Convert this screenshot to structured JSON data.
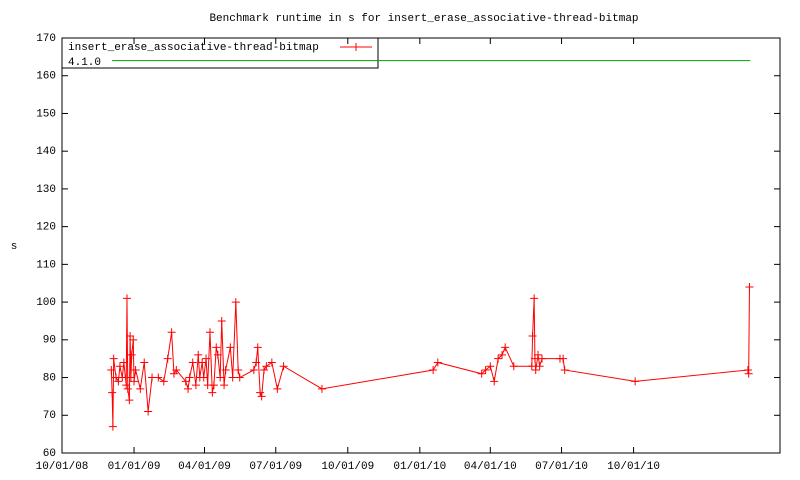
{
  "chart_data": {
    "type": "line",
    "title": "Benchmark runtime in s for insert_erase_associative-thread-bitmap",
    "ylabel": "s",
    "ylim": [
      60,
      170
    ],
    "yticks": [
      60,
      70,
      80,
      90,
      100,
      110,
      120,
      130,
      140,
      150,
      160,
      170
    ],
    "xlim": [
      "2008-10-01",
      "2011-04-06"
    ],
    "xticks": [
      {
        "value": "2008-10-01",
        "label": "10/01/08"
      },
      {
        "value": "2009-01-01",
        "label": "01/01/09"
      },
      {
        "value": "2009-04-01",
        "label": "04/01/09"
      },
      {
        "value": "2009-07-01",
        "label": "07/01/09"
      },
      {
        "value": "2009-10-01",
        "label": "10/01/09"
      },
      {
        "value": "2010-01-01",
        "label": "01/01/10"
      },
      {
        "value": "2010-04-01",
        "label": "04/01/10"
      },
      {
        "value": "2010-07-01",
        "label": "07/01/10"
      },
      {
        "value": "2010-10-01",
        "label": "10/01/10"
      }
    ],
    "legend": "top-left",
    "series": [
      {
        "name": "insert_erase_associative-thread-bitmap",
        "color": "#ff0000",
        "markers": true,
        "x": [
          "2008-12-03",
          "2008-12-04",
          "2008-12-05",
          "2008-12-06",
          "2008-12-09",
          "2008-12-12",
          "2008-12-14",
          "2008-12-17",
          "2008-12-19",
          "2008-12-22",
          "2008-12-23",
          "2008-12-24",
          "2008-12-26",
          "2008-12-27",
          "2008-12-28",
          "2008-12-29",
          "2008-12-31",
          "2009-01-01",
          "2009-01-03",
          "2009-01-09",
          "2009-01-14",
          "2009-01-19",
          "2009-01-24",
          "2009-02-01",
          "2009-02-08",
          "2009-02-13",
          "2009-02-18",
          "2009-02-21",
          "2009-02-24",
          "2009-03-08",
          "2009-03-11",
          "2009-03-13",
          "2009-03-17",
          "2009-03-21",
          "2009-03-24",
          "2009-03-26",
          "2009-03-29",
          "2009-03-31",
          "2009-04-03",
          "2009-04-05",
          "2009-04-08",
          "2009-04-11",
          "2009-04-13",
          "2009-04-16",
          "2009-04-18",
          "2009-04-21",
          "2009-04-23",
          "2009-04-26",
          "2009-04-28",
          "2009-05-04",
          "2009-05-07",
          "2009-05-11",
          "2009-05-14",
          "2009-05-16",
          "2009-06-03",
          "2009-06-06",
          "2009-06-08",
          "2009-06-11",
          "2009-06-13",
          "2009-06-16",
          "2009-06-19",
          "2009-06-26",
          "2009-07-03",
          "2009-07-11",
          "2009-08-29",
          "2010-01-18",
          "2010-01-24",
          "2010-03-21",
          "2010-03-26",
          "2010-04-01",
          "2010-04-06",
          "2010-04-11",
          "2010-04-16",
          "2010-04-20",
          "2010-05-01",
          "2010-05-24",
          "2010-05-25",
          "2010-05-27",
          "2010-05-28",
          "2010-05-29",
          "2010-06-01",
          "2010-06-03",
          "2010-06-06",
          "2010-06-29",
          "2010-07-03",
          "2010-07-05",
          "2010-10-03",
          "2011-02-24",
          "2011-02-25",
          "2011-02-26"
        ],
        "values": [
          82,
          76,
          67,
          85,
          80,
          79,
          83,
          80,
          84,
          78,
          101,
          77,
          74,
          91,
          80,
          86,
          90,
          79,
          82,
          77,
          84,
          71,
          80,
          80,
          79,
          85,
          92,
          81,
          82,
          79,
          77,
          80,
          84,
          78,
          86,
          80,
          84,
          80,
          85,
          78,
          92,
          76,
          78,
          88,
          86,
          80,
          95,
          78,
          82,
          88,
          80,
          100,
          82,
          80,
          82,
          84,
          88,
          76,
          75,
          82,
          83,
          84,
          77,
          83,
          77,
          82,
          84,
          81,
          82,
          83,
          79,
          85,
          86,
          88,
          83,
          83,
          91,
          101,
          85,
          82,
          86,
          83,
          85,
          85,
          85,
          82,
          79,
          82,
          81,
          104
        ]
      },
      {
        "name": "4.1.0",
        "color": "#00a000",
        "markers": false,
        "x": [
          "2008-12-04",
          "2011-02-27"
        ],
        "values": [
          164,
          164
        ]
      }
    ]
  }
}
